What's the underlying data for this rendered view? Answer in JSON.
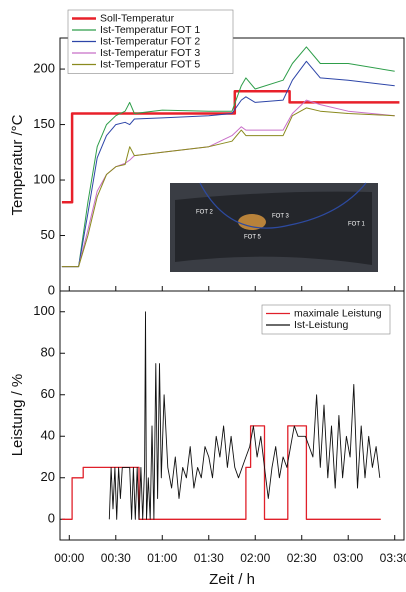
{
  "chart_data": [
    {
      "type": "line",
      "ylabel": "Temperatur /°C",
      "xlim": [
        -0.1,
        3.6
      ],
      "xticks": [
        0,
        0.5,
        1,
        1.5,
        2,
        2.5,
        3,
        3.5
      ],
      "ylim": [
        0,
        228
      ],
      "yticks": [
        0,
        50,
        100,
        150,
        200
      ],
      "legend": "upper left",
      "photo_labels": [
        "FOT 2",
        "FOT 3",
        "FOT 5",
        "FOT 1"
      ],
      "series": [
        {
          "name": "Soll-Temperatur",
          "color": "#e8202a",
          "width": 2.5,
          "x": [
            -0.08,
            0.03,
            0.03,
            1.78,
            1.78,
            2.37,
            2.37,
            3.55
          ],
          "values": [
            80,
            80,
            160,
            160,
            180,
            180,
            170,
            170
          ]
        },
        {
          "name": "Ist-Temperatur FOT 1",
          "color": "#2e9e4a",
          "width": 1,
          "x": [
            -0.08,
            0.1,
            0.2,
            0.3,
            0.4,
            0.5,
            0.6,
            0.65,
            0.7,
            1.0,
            1.5,
            1.75,
            1.85,
            1.9,
            2.0,
            2.3,
            2.4,
            2.55,
            2.7,
            3.0,
            3.5
          ],
          "values": [
            22,
            22,
            80,
            130,
            150,
            158,
            162,
            170,
            160,
            163,
            162,
            162,
            185,
            192,
            182,
            190,
            205,
            220,
            205,
            205,
            198
          ]
        },
        {
          "name": "Ist-Temperatur FOT 2",
          "color": "#2d45a8",
          "width": 1,
          "x": [
            -0.08,
            0.1,
            0.2,
            0.3,
            0.4,
            0.5,
            0.6,
            0.65,
            0.7,
            1.0,
            1.5,
            1.75,
            1.85,
            1.9,
            2.0,
            2.3,
            2.4,
            2.55,
            2.7,
            3.0,
            3.5
          ],
          "values": [
            22,
            22,
            70,
            120,
            140,
            150,
            152,
            150,
            155,
            156,
            158,
            160,
            172,
            175,
            170,
            172,
            190,
            207,
            192,
            190,
            185
          ]
        },
        {
          "name": "Ist-Temperatur FOT 3",
          "color": "#c86fc8",
          "width": 1,
          "x": [
            -0.08,
            0.1,
            0.2,
            0.3,
            0.4,
            0.5,
            0.6,
            0.65,
            0.7,
            1.0,
            1.5,
            1.75,
            1.85,
            1.9,
            2.0,
            2.3,
            2.4,
            2.55,
            2.7,
            3.0,
            3.5
          ],
          "values": [
            22,
            22,
            55,
            90,
            105,
            112,
            115,
            118,
            122,
            125,
            130,
            140,
            148,
            145,
            145,
            145,
            160,
            172,
            168,
            162,
            158
          ]
        },
        {
          "name": "Ist-Temperatur FOT 5",
          "color": "#8a8a1e",
          "width": 1,
          "x": [
            -0.08,
            0.1,
            0.2,
            0.3,
            0.4,
            0.5,
            0.6,
            0.65,
            0.7,
            1.0,
            1.5,
            1.75,
            1.85,
            1.9,
            2.0,
            2.3,
            2.4,
            2.55,
            2.7,
            3.0,
            3.5
          ],
          "values": [
            22,
            22,
            50,
            85,
            105,
            112,
            114,
            130,
            122,
            125,
            130,
            135,
            145,
            140,
            140,
            140,
            158,
            165,
            162,
            160,
            158
          ]
        }
      ]
    },
    {
      "type": "line",
      "xlabel": "Zeit / h",
      "ylabel": "Leistung / %",
      "xlim": [
        -0.1,
        3.6
      ],
      "xticks": [
        {
          "value": 0,
          "label": "00:00"
        },
        {
          "value": 0.5,
          "label": "00:30"
        },
        {
          "value": 1,
          "label": "01:00"
        },
        {
          "value": 1.5,
          "label": "01:30"
        },
        {
          "value": 2,
          "label": "02:00"
        },
        {
          "value": 2.5,
          "label": "02:30"
        },
        {
          "value": 3,
          "label": "03:00"
        },
        {
          "value": 3.5,
          "label": "03:30"
        }
      ],
      "ylim": [
        -10,
        110
      ],
      "yticks": [
        0,
        20,
        40,
        60,
        80,
        100
      ],
      "legend": "upper right",
      "series": [
        {
          "name": "maximale Leistung",
          "color": "#e0202a",
          "width": 1.3,
          "x": [
            -0.08,
            0.03,
            0.03,
            0.15,
            0.15,
            0.75,
            0.75,
            1.9,
            1.9,
            1.95,
            1.95,
            2.1,
            2.1,
            2.35,
            2.35,
            2.55,
            2.55,
            3.35
          ],
          "values": [
            0,
            0,
            20,
            20,
            25,
            25,
            0,
            0,
            25,
            25,
            45,
            45,
            0,
            0,
            45,
            45,
            0,
            0
          ]
        },
        {
          "name": "Ist-Leistung",
          "color": "#111111",
          "width": 0.9,
          "x": [
            0.43,
            0.45,
            0.47,
            0.49,
            0.51,
            0.53,
            0.55,
            0.57,
            0.59,
            0.61,
            0.63,
            0.65,
            0.67,
            0.69,
            0.71,
            0.73,
            0.75,
            0.77,
            0.79,
            0.81,
            0.82,
            0.83,
            0.85,
            0.87,
            0.89,
            0.91,
            0.93,
            0.95,
            0.97,
            0.99,
            1.02,
            1.06,
            1.1,
            1.14,
            1.18,
            1.22,
            1.26,
            1.3,
            1.34,
            1.38,
            1.42,
            1.46,
            1.5,
            1.54,
            1.58,
            1.62,
            1.66,
            1.7,
            1.74,
            1.78,
            1.82,
            1.86,
            1.9,
            1.94,
            1.98,
            2.02,
            2.06,
            2.1,
            2.14,
            2.18,
            2.22,
            2.26,
            2.3,
            2.34,
            2.38,
            2.42,
            2.46,
            2.5,
            2.54,
            2.58,
            2.62,
            2.66,
            2.7,
            2.74,
            2.78,
            2.82,
            2.86,
            2.9,
            2.94,
            2.98,
            3.02,
            3.06,
            3.1,
            3.14,
            3.18,
            3.22,
            3.26,
            3.3,
            3.34
          ],
          "values": [
            0,
            25,
            5,
            25,
            0,
            25,
            10,
            25,
            25,
            25,
            25,
            25,
            0,
            25,
            0,
            25,
            0,
            25,
            0,
            25,
            100,
            0,
            20,
            0,
            45,
            0,
            75,
            10,
            75,
            20,
            60,
            25,
            15,
            30,
            10,
            25,
            20,
            35,
            15,
            25,
            20,
            35,
            30,
            20,
            40,
            30,
            45,
            25,
            40,
            25,
            20,
            25,
            30,
            35,
            45,
            30,
            40,
            25,
            10,
            25,
            35,
            20,
            30,
            25,
            35,
            45,
            40,
            40,
            40,
            35,
            30,
            60,
            25,
            55,
            20,
            45,
            15,
            50,
            20,
            40,
            30,
            65,
            15,
            45,
            20,
            40,
            25,
            35,
            20
          ]
        }
      ]
    }
  ]
}
